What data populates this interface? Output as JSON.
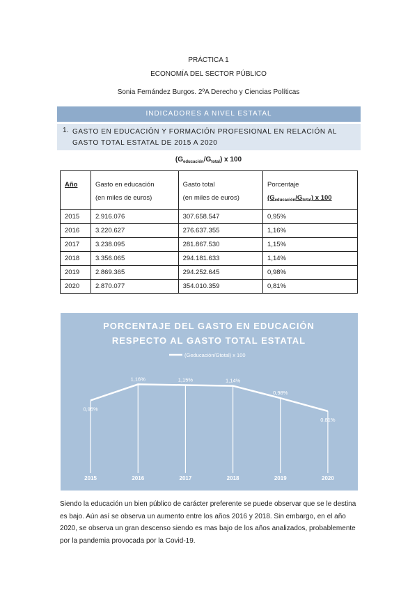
{
  "header": {
    "practica": "PRÁCTICA 1",
    "subject": "ECONOMÍA DEL SECTOR PÚBLICO",
    "author": "Sonia Fernández Burgos. 2ºA Derecho y Ciencias Políticas"
  },
  "banner": "INDICADORES A NIVEL ESTATAL",
  "section": {
    "number": "1.",
    "text": "GASTO EN EDUCACIÓN Y FORMACIÓN PROFESIONAL EN RELACIÓN AL GASTO TOTAL ESTATAL DE 2015 A 2020"
  },
  "formula": {
    "open": "(G",
    "sub1": "educación",
    "mid": "/G",
    "sub2": "total",
    "close": ") x 100"
  },
  "table": {
    "columns": [
      {
        "title": "Año"
      },
      {
        "title": "Gasto en educación",
        "subtitle": "(en miles de euros)"
      },
      {
        "title": "Gasto total",
        "subtitle": "(en miles de euros)"
      },
      {
        "title": "Porcentaje",
        "formula": {
          "open": "(G",
          "sub1": "educación",
          "mid": "/G",
          "sub2": "total",
          "close": ") x 100"
        }
      }
    ],
    "rows": [
      [
        "2015",
        "2.916.076",
        "307.658.547",
        "0,95%"
      ],
      [
        "2016",
        "3.220.627",
        "276.637.355",
        "1,16%"
      ],
      [
        "2017",
        "3.238.095",
        "281.867.530",
        "1,15%"
      ],
      [
        "2018",
        "3.356.065",
        "294.181.633",
        "1,14%"
      ],
      [
        "2019",
        "2.869.365",
        "294.252.645",
        "0,98%"
      ],
      [
        "2020",
        "2.870.077",
        "354.010.359",
        "0,81%"
      ]
    ]
  },
  "chart_data": {
    "type": "line",
    "title": "PORCENTAJE DEL GASTO EN EDUCACIÓN RESPECTO AL GASTO TOTAL ESTATAL",
    "background": "#a9c1da",
    "categories": [
      "2015",
      "2016",
      "2017",
      "2018",
      "2019",
      "2020"
    ],
    "series": [
      {
        "name": "(Geducación/Gtotal) x 100",
        "color": "#ffffff",
        "values": [
          0.95,
          1.16,
          1.15,
          1.14,
          0.98,
          0.81
        ],
        "value_labels": [
          "0,95%",
          "1,16%",
          "1,15%",
          "1,14%",
          "0,98%",
          "0,81%"
        ]
      }
    ]
  },
  "paragraph": "Siendo la educación un bien público de carácter preferente se puede observar que se le destina es bajo. Aún así se observa un aumento entre los años 2016 y 2018. Sin embargo, en el año 2020, se observa un gran descenso siendo es mas bajo de los años analizados, probablemente por la pandemia provocada por la Covid-19."
}
